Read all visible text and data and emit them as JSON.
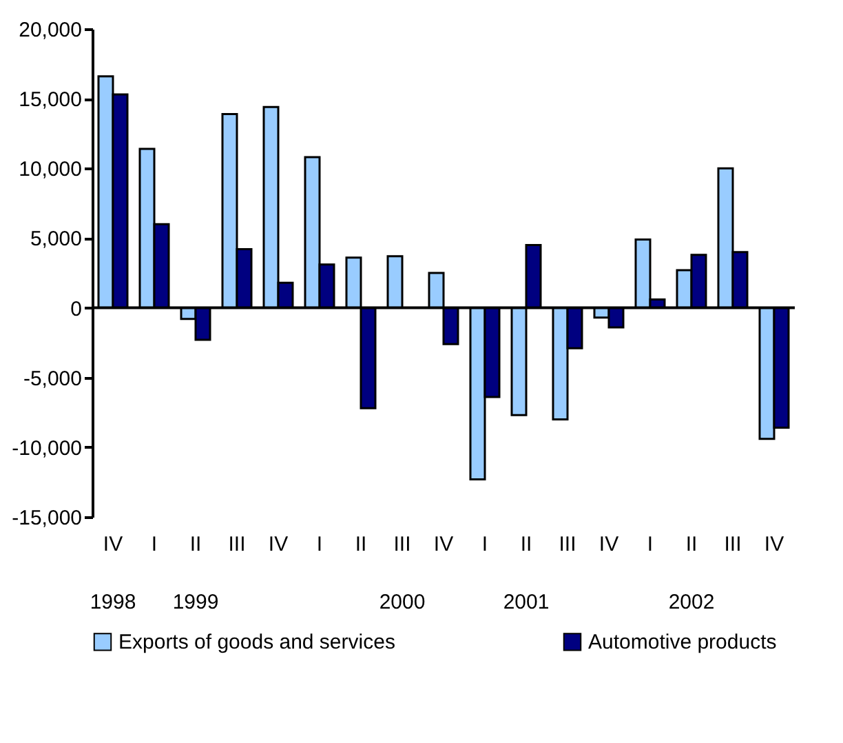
{
  "chart_data": {
    "type": "bar",
    "categories": [
      "IV\n1998",
      "I",
      "II\n1999",
      "III",
      "IV",
      "I",
      "II",
      "III\n2000",
      "IV",
      "I",
      "II\n2001",
      "III",
      "IV",
      "I",
      "II\n2002",
      "III",
      "IV"
    ],
    "series": [
      {
        "name": "Exports of goods and services",
        "color": "#99ccff",
        "values": [
          16600,
          11400,
          -800,
          13900,
          14400,
          10800,
          3600,
          3700,
          2500,
          -12300,
          -7700,
          -8000,
          -700,
          4900,
          2700,
          10000,
          -9400
        ]
      },
      {
        "name": "Automotive products",
        "color": "#000080",
        "values": [
          15300,
          6000,
          -2300,
          4200,
          1800,
          3100,
          -7200,
          0,
          -2600,
          -6400,
          4500,
          -2900,
          -1400,
          600,
          3800,
          4000,
          -8600
        ]
      }
    ],
    "ylim": [
      -15000,
      20000
    ],
    "yticks": [
      {
        "value": -15000,
        "label": "-15,000"
      },
      {
        "value": -10000,
        "label": "-10,000"
      },
      {
        "value": -5000,
        "label": "-5,000"
      },
      0,
      {
        "value": 5000,
        "label": "5,000"
      },
      {
        "value": 10000,
        "label": "10,000"
      },
      {
        "value": 15000,
        "label": "15,000"
      },
      {
        "value": 20000,
        "label": "20,000"
      }
    ],
    "ref_lines": [
      {
        "axis": "y",
        "value": 0,
        "color": "#000000"
      }
    ],
    "grid": false,
    "legend": "bottom"
  }
}
